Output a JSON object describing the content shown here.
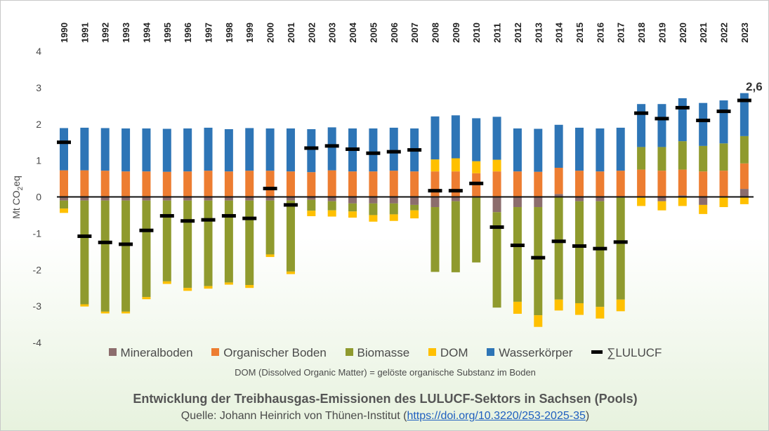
{
  "chart_data": {
    "type": "bar",
    "stacked": true,
    "title": "Entwicklung der Treibhausgas-Emissionen des LULUCF-Sektors in Sachsen (Pools)",
    "source_prefix": "Quelle: Johann Heinrich von Thünen-Institut (",
    "source_link": "https://doi.org/10.3220/253-2025-35",
    "source_suffix": ")",
    "note": "DOM (Dissolved Organic Matter) = gelöste organische Substanz im Boden",
    "ylabel": "Mt CO",
    "ylabel_sub": "2",
    "ylabel_suffix": "eq",
    "ylim": [
      -4,
      4
    ],
    "yticks": [
      4,
      3,
      2,
      1,
      0,
      -1,
      -2,
      -3,
      -4
    ],
    "annotation": "2,6",
    "categories": [
      "1990",
      "1991",
      "1992",
      "1993",
      "1994",
      "1995",
      "1996",
      "1997",
      "1998",
      "1999",
      "2000",
      "2001",
      "2002",
      "2003",
      "2004",
      "2005",
      "2006",
      "2007",
      "2008",
      "2009",
      "2010",
      "2011",
      "2012",
      "2013",
      "2014",
      "2015",
      "2016",
      "2017",
      "2018",
      "2019",
      "2020",
      "2021",
      "2022",
      "2023"
    ],
    "series": [
      {
        "name": "Mineralboden",
        "color": "#8c6d6d",
        "values": [
          -0.1,
          -0.1,
          -0.1,
          -0.1,
          -0.1,
          -0.1,
          -0.1,
          -0.1,
          -0.1,
          -0.1,
          -0.1,
          -0.1,
          -0.08,
          -0.12,
          -0.18,
          -0.18,
          -0.18,
          -0.22,
          -0.28,
          -0.12,
          0.0,
          -0.42,
          -0.28,
          -0.28,
          0.08,
          -0.12,
          -0.12,
          -0.02,
          0.02,
          -0.12,
          0.04,
          -0.22,
          0.02,
          0.22
        ]
      },
      {
        "name": "Organischer Boden",
        "color": "#ed7d31",
        "values": [
          0.73,
          0.73,
          0.72,
          0.7,
          0.7,
          0.69,
          0.7,
          0.72,
          0.7,
          0.72,
          0.72,
          0.7,
          0.68,
          0.73,
          0.7,
          0.7,
          0.72,
          0.7,
          0.7,
          0.7,
          0.65,
          0.7,
          0.7,
          0.69,
          0.72,
          0.72,
          0.7,
          0.72,
          0.73,
          0.72,
          0.71,
          0.7,
          0.7,
          0.7
        ]
      },
      {
        "name": "Biomasse",
        "color": "#8f9a2e",
        "values": [
          -0.22,
          -2.85,
          -3.05,
          -3.05,
          -2.65,
          -2.22,
          -2.4,
          -2.35,
          -2.25,
          -2.32,
          -1.48,
          -1.95,
          -0.3,
          -0.25,
          -0.22,
          -0.32,
          -0.3,
          -0.15,
          -1.78,
          -1.95,
          -1.8,
          -2.62,
          -2.6,
          -2.97,
          -2.82,
          -2.8,
          -2.9,
          -2.8,
          0.62,
          0.65,
          0.78,
          0.7,
          0.75,
          0.75
        ]
      },
      {
        "name": "DOM",
        "color": "#ffc000",
        "values": [
          -0.12,
          -0.06,
          -0.05,
          -0.05,
          -0.06,
          -0.07,
          -0.08,
          -0.07,
          -0.06,
          -0.08,
          -0.07,
          -0.07,
          -0.15,
          -0.17,
          -0.17,
          -0.18,
          -0.18,
          -0.22,
          0.33,
          0.36,
          0.33,
          0.32,
          -0.33,
          -0.32,
          -0.3,
          -0.32,
          -0.32,
          -0.32,
          -0.25,
          -0.25,
          -0.25,
          -0.25,
          -0.28,
          -0.2
        ]
      },
      {
        "name": "Wasserkörper",
        "color": "#2e75b6",
        "values": [
          1.16,
          1.17,
          1.17,
          1.18,
          1.18,
          1.18,
          1.18,
          1.18,
          1.16,
          1.17,
          1.16,
          1.18,
          1.18,
          1.18,
          1.18,
          1.18,
          1.18,
          1.18,
          1.18,
          1.18,
          1.18,
          1.18,
          1.18,
          1.18,
          1.18,
          1.18,
          1.18,
          1.18,
          1.18,
          1.18,
          1.18,
          1.18,
          1.18,
          1.18
        ]
      },
      {
        "name": "∑LULUCF",
        "type": "marker",
        "color": "#000000",
        "values": [
          1.5,
          -1.08,
          -1.25,
          -1.3,
          -0.92,
          -0.52,
          -0.66,
          -0.63,
          -0.52,
          -0.59,
          0.23,
          -0.22,
          1.34,
          1.4,
          1.31,
          1.2,
          1.24,
          1.29,
          0.17,
          0.17,
          0.37,
          -0.83,
          -1.33,
          -1.67,
          -1.22,
          -1.35,
          -1.42,
          -1.24,
          2.3,
          2.15,
          2.45,
          2.1,
          2.35,
          2.65
        ]
      }
    ]
  }
}
